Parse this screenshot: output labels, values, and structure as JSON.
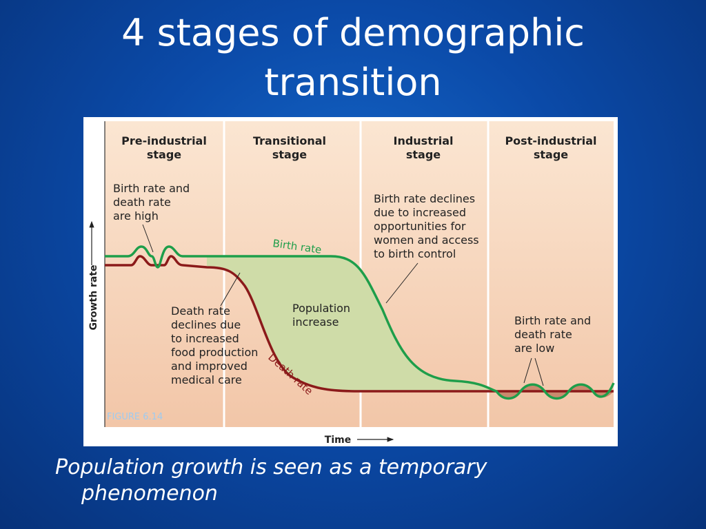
{
  "slide": {
    "title": "4 stages of demographic transition",
    "caption": "Population growth is seen as a temporary phenomenon"
  },
  "figure": {
    "stages": [
      [
        "Pre-industrial",
        "stage"
      ],
      [
        "Transitional",
        "stage"
      ],
      [
        "Industrial",
        "stage"
      ],
      [
        "Post-industrial",
        "stage"
      ]
    ],
    "annotations": {
      "high": [
        "Birth rate and",
        "death rate",
        "are high"
      ],
      "birth_decline": [
        "Birth rate declines",
        "due to increased",
        "opportunities for",
        "women and access",
        "to birth control"
      ],
      "death_decline": [
        "Death rate",
        "declines due",
        "to increased",
        "food production",
        "and improved",
        "medical care"
      ],
      "increase": [
        "Population",
        "increase"
      ],
      "low": [
        "Birth rate and",
        "death rate",
        "are low"
      ]
    },
    "birth_label": "Birth rate",
    "death_label": "Death rate",
    "y_axis": "Growth rate",
    "x_axis": "Time",
    "figure_label": "FIGURE 6.14"
  }
}
